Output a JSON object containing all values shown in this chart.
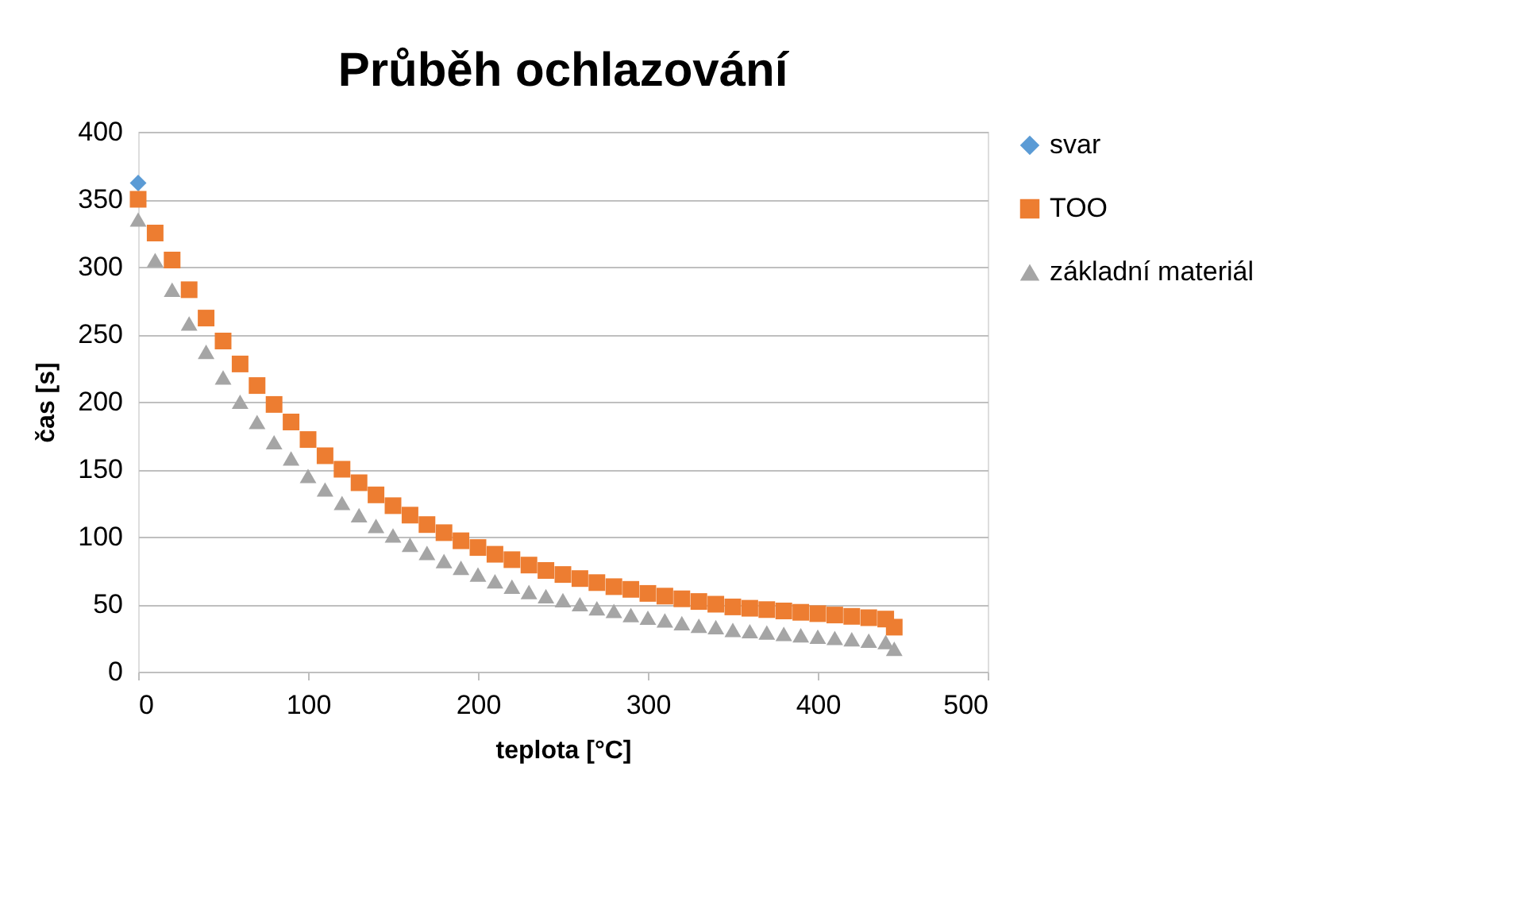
{
  "chart_data": {
    "type": "scatter",
    "title": "Průběh ochlazování",
    "xlabel": "teplota [°C]",
    "ylabel": "čas [s]",
    "xlim": [
      0,
      500
    ],
    "xticks": [
      0,
      100,
      200,
      300,
      400,
      500
    ],
    "ylim": [
      0,
      400
    ],
    "yticks": [
      0,
      50,
      100,
      150,
      200,
      250,
      300,
      350,
      400
    ],
    "grid": "y",
    "legend": "right",
    "series": [
      {
        "name": "svar",
        "color": "#5b9bd5",
        "marker": "diamond",
        "x": [
          0
        ],
        "values": [
          362
        ]
      },
      {
        "name": "TOO",
        "color": "#ed7d31",
        "marker": "square",
        "x": [
          0,
          10,
          20,
          30,
          40,
          50,
          60,
          70,
          80,
          90,
          100,
          110,
          120,
          130,
          140,
          150,
          160,
          170,
          180,
          190,
          200,
          210,
          220,
          230,
          240,
          250,
          260,
          270,
          280,
          290,
          300,
          310,
          320,
          330,
          340,
          350,
          360,
          370,
          380,
          390,
          400,
          410,
          420,
          430,
          440,
          445
        ],
        "values": [
          350,
          325,
          305,
          283,
          262,
          245,
          228,
          212,
          198,
          185,
          172,
          160,
          150,
          140,
          131,
          123,
          116,
          109,
          103,
          97,
          92,
          87,
          83,
          79,
          75,
          72,
          69,
          66,
          63,
          61,
          58,
          56,
          54,
          52,
          50,
          48,
          47,
          46,
          45,
          44,
          43,
          42,
          41,
          40,
          39,
          33
        ]
      },
      {
        "name": "základní materiál",
        "color": "#a5a5a5",
        "marker": "triangle",
        "x": [
          0,
          10,
          20,
          30,
          40,
          50,
          60,
          70,
          80,
          90,
          100,
          110,
          120,
          130,
          140,
          150,
          160,
          170,
          180,
          190,
          200,
          210,
          220,
          230,
          240,
          250,
          260,
          270,
          280,
          290,
          300,
          310,
          320,
          330,
          340,
          350,
          360,
          370,
          380,
          390,
          400,
          410,
          420,
          430,
          440,
          445
        ],
        "values": [
          335,
          305,
          283,
          258,
          237,
          218,
          200,
          185,
          170,
          158,
          145,
          135,
          125,
          116,
          108,
          101,
          94,
          88,
          82,
          77,
          72,
          67,
          63,
          59,
          56,
          53,
          50,
          47,
          45,
          42,
          40,
          38,
          36,
          34,
          33,
          31,
          30,
          29,
          28,
          27,
          26,
          25,
          24,
          23,
          22,
          17
        ]
      }
    ]
  }
}
